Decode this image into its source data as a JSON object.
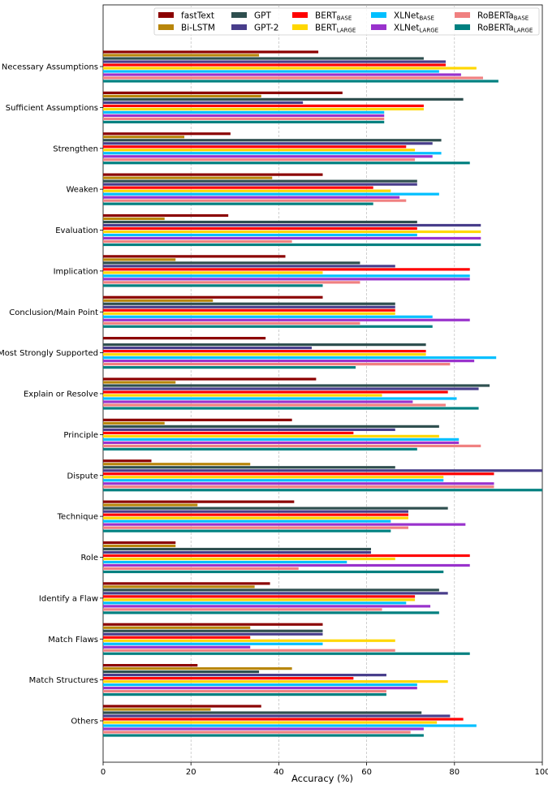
{
  "chart_data": {
    "type": "bar",
    "orientation": "horizontal",
    "title": "",
    "xlabel": "Accuracy (%)",
    "ylabel": "",
    "xlim": [
      0,
      100
    ],
    "xticks": [
      0,
      20,
      40,
      60,
      80,
      100
    ],
    "grid": "vertical dashed",
    "legend_position": "top",
    "categories": [
      "Necessary Assumptions",
      "Sufficient Assumptions",
      "Strengthen",
      "Weaken",
      "Evaluation",
      "Implication",
      "Conclusion/Main Point",
      "Most Strongly Supported",
      "Explain or Resolve",
      "Principle",
      "Dispute",
      "Technique",
      "Role",
      "Identify a Flaw",
      "Match Flaws",
      "Match Structures",
      "Others"
    ],
    "series": [
      {
        "name": "fastText",
        "name_main": "fastText",
        "name_sub": "",
        "color": "#8b0000",
        "values": [
          49,
          54.5,
          29,
          50,
          28.5,
          41.5,
          50,
          37,
          48.5,
          43,
          11,
          43.5,
          16.5,
          38,
          50,
          21.5,
          36
        ]
      },
      {
        "name": "Bi-LSTM",
        "name_main": "Bi-LSTM",
        "name_sub": "",
        "color": "#b8860b",
        "values": [
          35.5,
          36,
          18.5,
          38.5,
          14,
          16.5,
          25,
          0,
          16.5,
          14,
          33.5,
          21.5,
          16.5,
          34.5,
          33.5,
          43,
          24.5
        ]
      },
      {
        "name": "GPT",
        "name_main": "GPT",
        "name_sub": "",
        "color": "#2f4f4f",
        "values": [
          73,
          82,
          77,
          71.5,
          71.5,
          58.5,
          66.5,
          73.5,
          88,
          76.5,
          66.5,
          78.5,
          61,
          76.5,
          50,
          35.5,
          72.5
        ]
      },
      {
        "name": "GPT-2",
        "name_main": "GPT-2",
        "name_sub": "",
        "color": "#483d8b",
        "values": [
          78,
          45.5,
          75,
          71.5,
          86,
          66.5,
          66.5,
          47.5,
          85.5,
          66.5,
          100,
          69.5,
          61,
          78.5,
          50,
          64.5,
          79
        ]
      },
      {
        "name": "BERT-BASE",
        "name_main": "BERT",
        "name_sub": "BASE",
        "color": "#ff0000",
        "values": [
          78,
          73,
          69,
          61.5,
          71.5,
          83.5,
          66.5,
          73.5,
          78.5,
          57,
          89,
          69.5,
          83.5,
          71,
          33.5,
          57,
          82
        ]
      },
      {
        "name": "BERT-LARGE",
        "name_main": "BERT",
        "name_sub": "LARGE",
        "color": "#ffd700",
        "values": [
          85,
          73,
          71,
          65.5,
          86,
          50,
          66.5,
          73.5,
          63.5,
          76.5,
          77.5,
          69.5,
          66.5,
          71,
          66.5,
          78.5,
          76
        ]
      },
      {
        "name": "XLNet-BASE",
        "name_main": "XLNet",
        "name_sub": "BASE",
        "color": "#00bfff",
        "values": [
          76.5,
          64,
          77,
          76.5,
          71.5,
          83.5,
          75,
          89.5,
          80.5,
          81,
          77.5,
          65.5,
          55.5,
          69,
          50,
          71.5,
          85
        ]
      },
      {
        "name": "XLNet-LARGE",
        "name_main": "XLNet",
        "name_sub": "LARGE",
        "color": "#9932cc",
        "values": [
          81.5,
          64,
          75,
          67.5,
          86,
          83.5,
          83.5,
          84.5,
          70.5,
          81,
          89,
          82.5,
          83.5,
          74.5,
          33.5,
          71.5,
          73
        ]
      },
      {
        "name": "RoBERTa-BASE",
        "name_main": "RoBERTa",
        "name_sub": "BASE",
        "color": "#f08080",
        "values": [
          86.5,
          64,
          71,
          69,
          43,
          58.5,
          58.5,
          79,
          78,
          86,
          89,
          69.5,
          44.5,
          63.5,
          66.5,
          64.5,
          70
        ]
      },
      {
        "name": "RoBERTa-LARGE",
        "name_main": "RoBERTa",
        "name_sub": "LARGE",
        "color": "#008080",
        "values": [
          90,
          64,
          83.5,
          61.5,
          86,
          50,
          75,
          57.5,
          85.5,
          71.5,
          100,
          65.5,
          77.5,
          76.5,
          83.5,
          64.5,
          73
        ]
      }
    ]
  }
}
